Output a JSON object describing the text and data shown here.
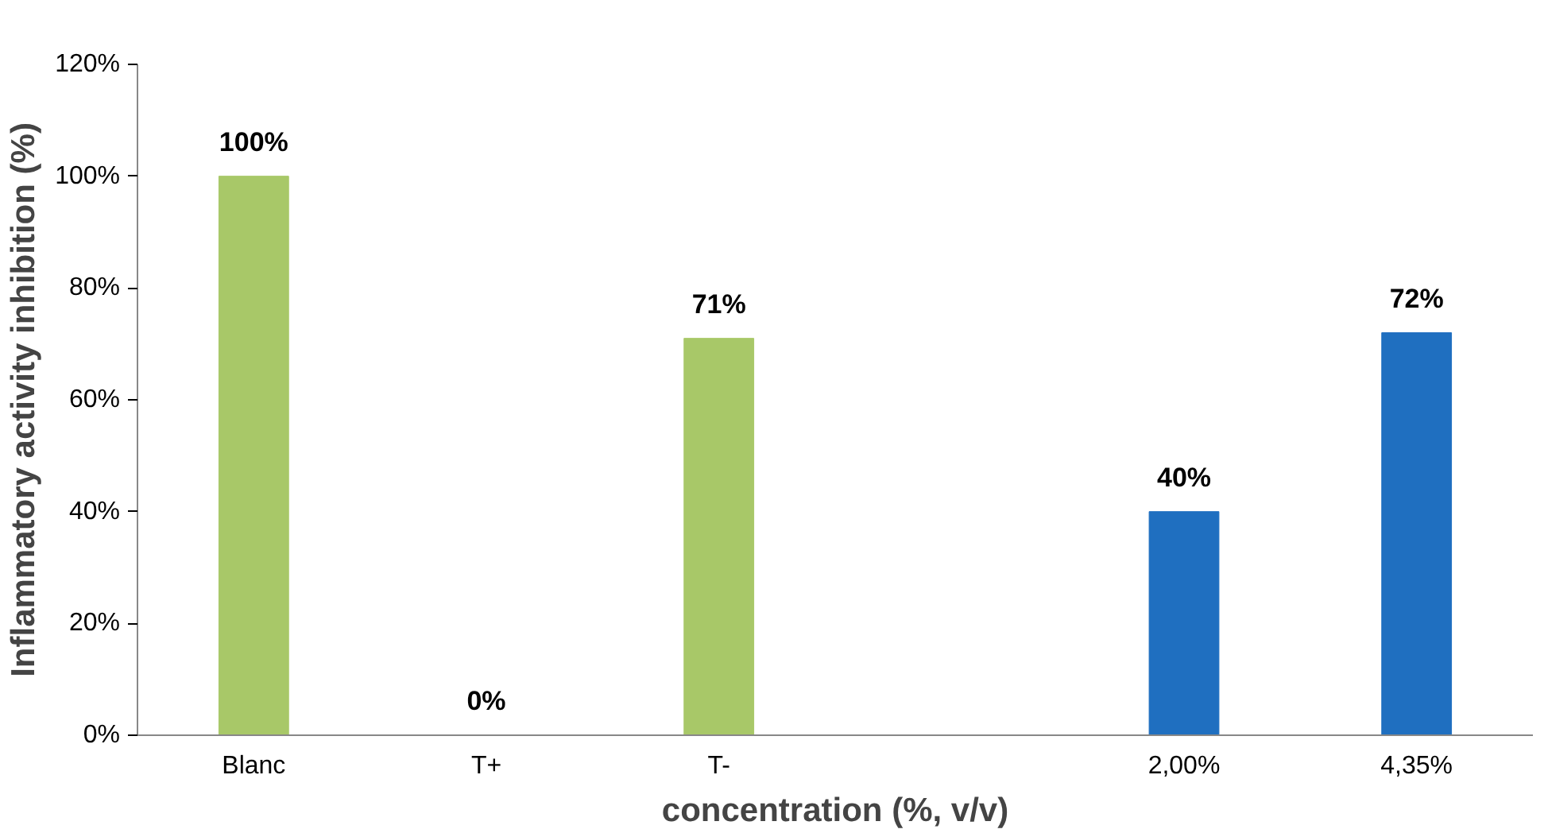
{
  "chart_data": {
    "type": "bar",
    "categories": [
      "Blanc",
      "T+",
      "T-",
      null,
      "2,00%",
      "4,35%"
    ],
    "values": [
      100,
      0,
      71,
      null,
      40,
      72
    ],
    "colors": [
      "#a8c868",
      "#a8c868",
      "#a8c868",
      "#1f6fc0",
      "#1f6fc0",
      "#1f6fc0"
    ],
    "value_labels": [
      "100%",
      "0%",
      "71%",
      null,
      "40%",
      "72%"
    ],
    "xlabel": "concentration (%, v/v)",
    "ylabel": "Inflammatory activity inhibition (%)",
    "ylim": [
      0,
      120
    ],
    "yticks": [
      {
        "value": 0,
        "label": "0%"
      },
      {
        "value": 20,
        "label": "20%"
      },
      {
        "value": 40,
        "label": "40%"
      },
      {
        "value": 60,
        "label": "60%"
      },
      {
        "value": 80,
        "label": "80%"
      },
      {
        "value": 100,
        "label": "100%"
      },
      {
        "value": 120,
        "label": "120%"
      }
    ],
    "grid": false
  }
}
